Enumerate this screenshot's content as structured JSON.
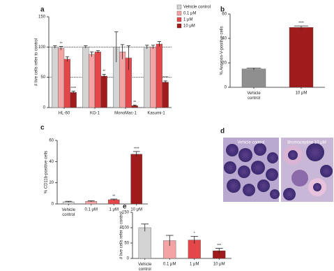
{
  "chart_data": [
    {
      "panel": "a",
      "type": "bar",
      "ylabel": "# live cells refer to control",
      "categories": [
        "HL-60",
        "KG-1",
        "MonoMac-1",
        "Kasumi-1"
      ],
      "series": [
        {
          "name": "Vehicle control",
          "color": "#d4d4d4",
          "values": [
            100,
            100,
            100,
            100
          ],
          "errors": [
            2,
            2,
            25,
            3
          ]
        },
        {
          "name": "0.1 μM",
          "color": "#f3a3a3",
          "values": [
            98,
            88,
            92,
            100
          ],
          "errors": [
            3,
            4,
            12,
            3
          ]
        },
        {
          "name": "1 μM",
          "color": "#e3474a",
          "values": [
            80,
            92,
            82,
            105
          ],
          "errors": [
            4,
            2,
            20,
            4
          ]
        },
        {
          "name": "10 μM",
          "color": "#a01b1b",
          "values": [
            25,
            52,
            3,
            42
          ],
          "errors": [
            2,
            3,
            1,
            2
          ]
        }
      ],
      "ylim": [
        0,
        150
      ],
      "yticks": [
        0,
        50,
        100,
        150
      ],
      "reference_lines": [
        100,
        50
      ],
      "legend": "right",
      "annotations": [
        {
          "series": 1,
          "index": 0,
          "text": "**"
        },
        {
          "series": 3,
          "index": 0,
          "text": "****"
        },
        {
          "series": 3,
          "index": 1,
          "text": "**"
        },
        {
          "series": 3,
          "index": 2,
          "text": "**"
        },
        {
          "series": 3,
          "index": 3,
          "text": "****"
        }
      ]
    },
    {
      "panel": "b",
      "type": "bar",
      "ylabel": "% Annexin-V-positive cells",
      "categories": [
        "Vehicle control",
        "10 μM"
      ],
      "colors": [
        "#8f8f8f",
        "#a01b1b"
      ],
      "values": [
        15,
        49
      ],
      "errors": [
        0.8,
        1.2
      ],
      "ylim": [
        0,
        60
      ],
      "yticks": [
        0,
        20,
        40,
        60
      ],
      "annotations": [
        {
          "index": 1,
          "text": "****"
        }
      ]
    },
    {
      "panel": "c",
      "type": "bar",
      "ylabel": "% CD11b-positive cells",
      "categories": [
        "Vehicle control",
        "0.1 μM",
        "1 μM",
        "10 μM"
      ],
      "colors": [
        "#d4d4d4",
        "#f3a3a3",
        "#e3474a",
        "#a01b1b"
      ],
      "values": [
        2,
        2.5,
        4,
        47
      ],
      "errors": [
        0.5,
        0.5,
        0.6,
        2.5
      ],
      "ylim": [
        0,
        60
      ],
      "yticks": [
        0,
        20,
        40,
        60
      ],
      "annotations": [
        {
          "index": 2,
          "text": "**"
        },
        {
          "index": 3,
          "text": "****"
        }
      ]
    },
    {
      "panel": "d",
      "type": "image",
      "titles": [
        "Vehicle control",
        "Bromocriptine 10 μM"
      ]
    },
    {
      "panel": "e",
      "type": "bar",
      "ylabel": "# live cells refer to control",
      "categories": [
        "Vehicle control",
        "0.1 μM",
        "1 μM",
        "10 μM"
      ],
      "colors": [
        "#d4d4d4",
        "#f3a3a3",
        "#e3474a",
        "#a01b1b"
      ],
      "values": [
        100,
        58,
        60,
        25
      ],
      "errors": [
        12,
        17,
        12,
        8
      ],
      "ylim": [
        0,
        150
      ],
      "yticks": [
        0,
        50,
        100,
        150
      ],
      "annotations": [
        {
          "index": 2,
          "text": "*"
        },
        {
          "index": 3,
          "text": "***"
        }
      ]
    }
  ]
}
